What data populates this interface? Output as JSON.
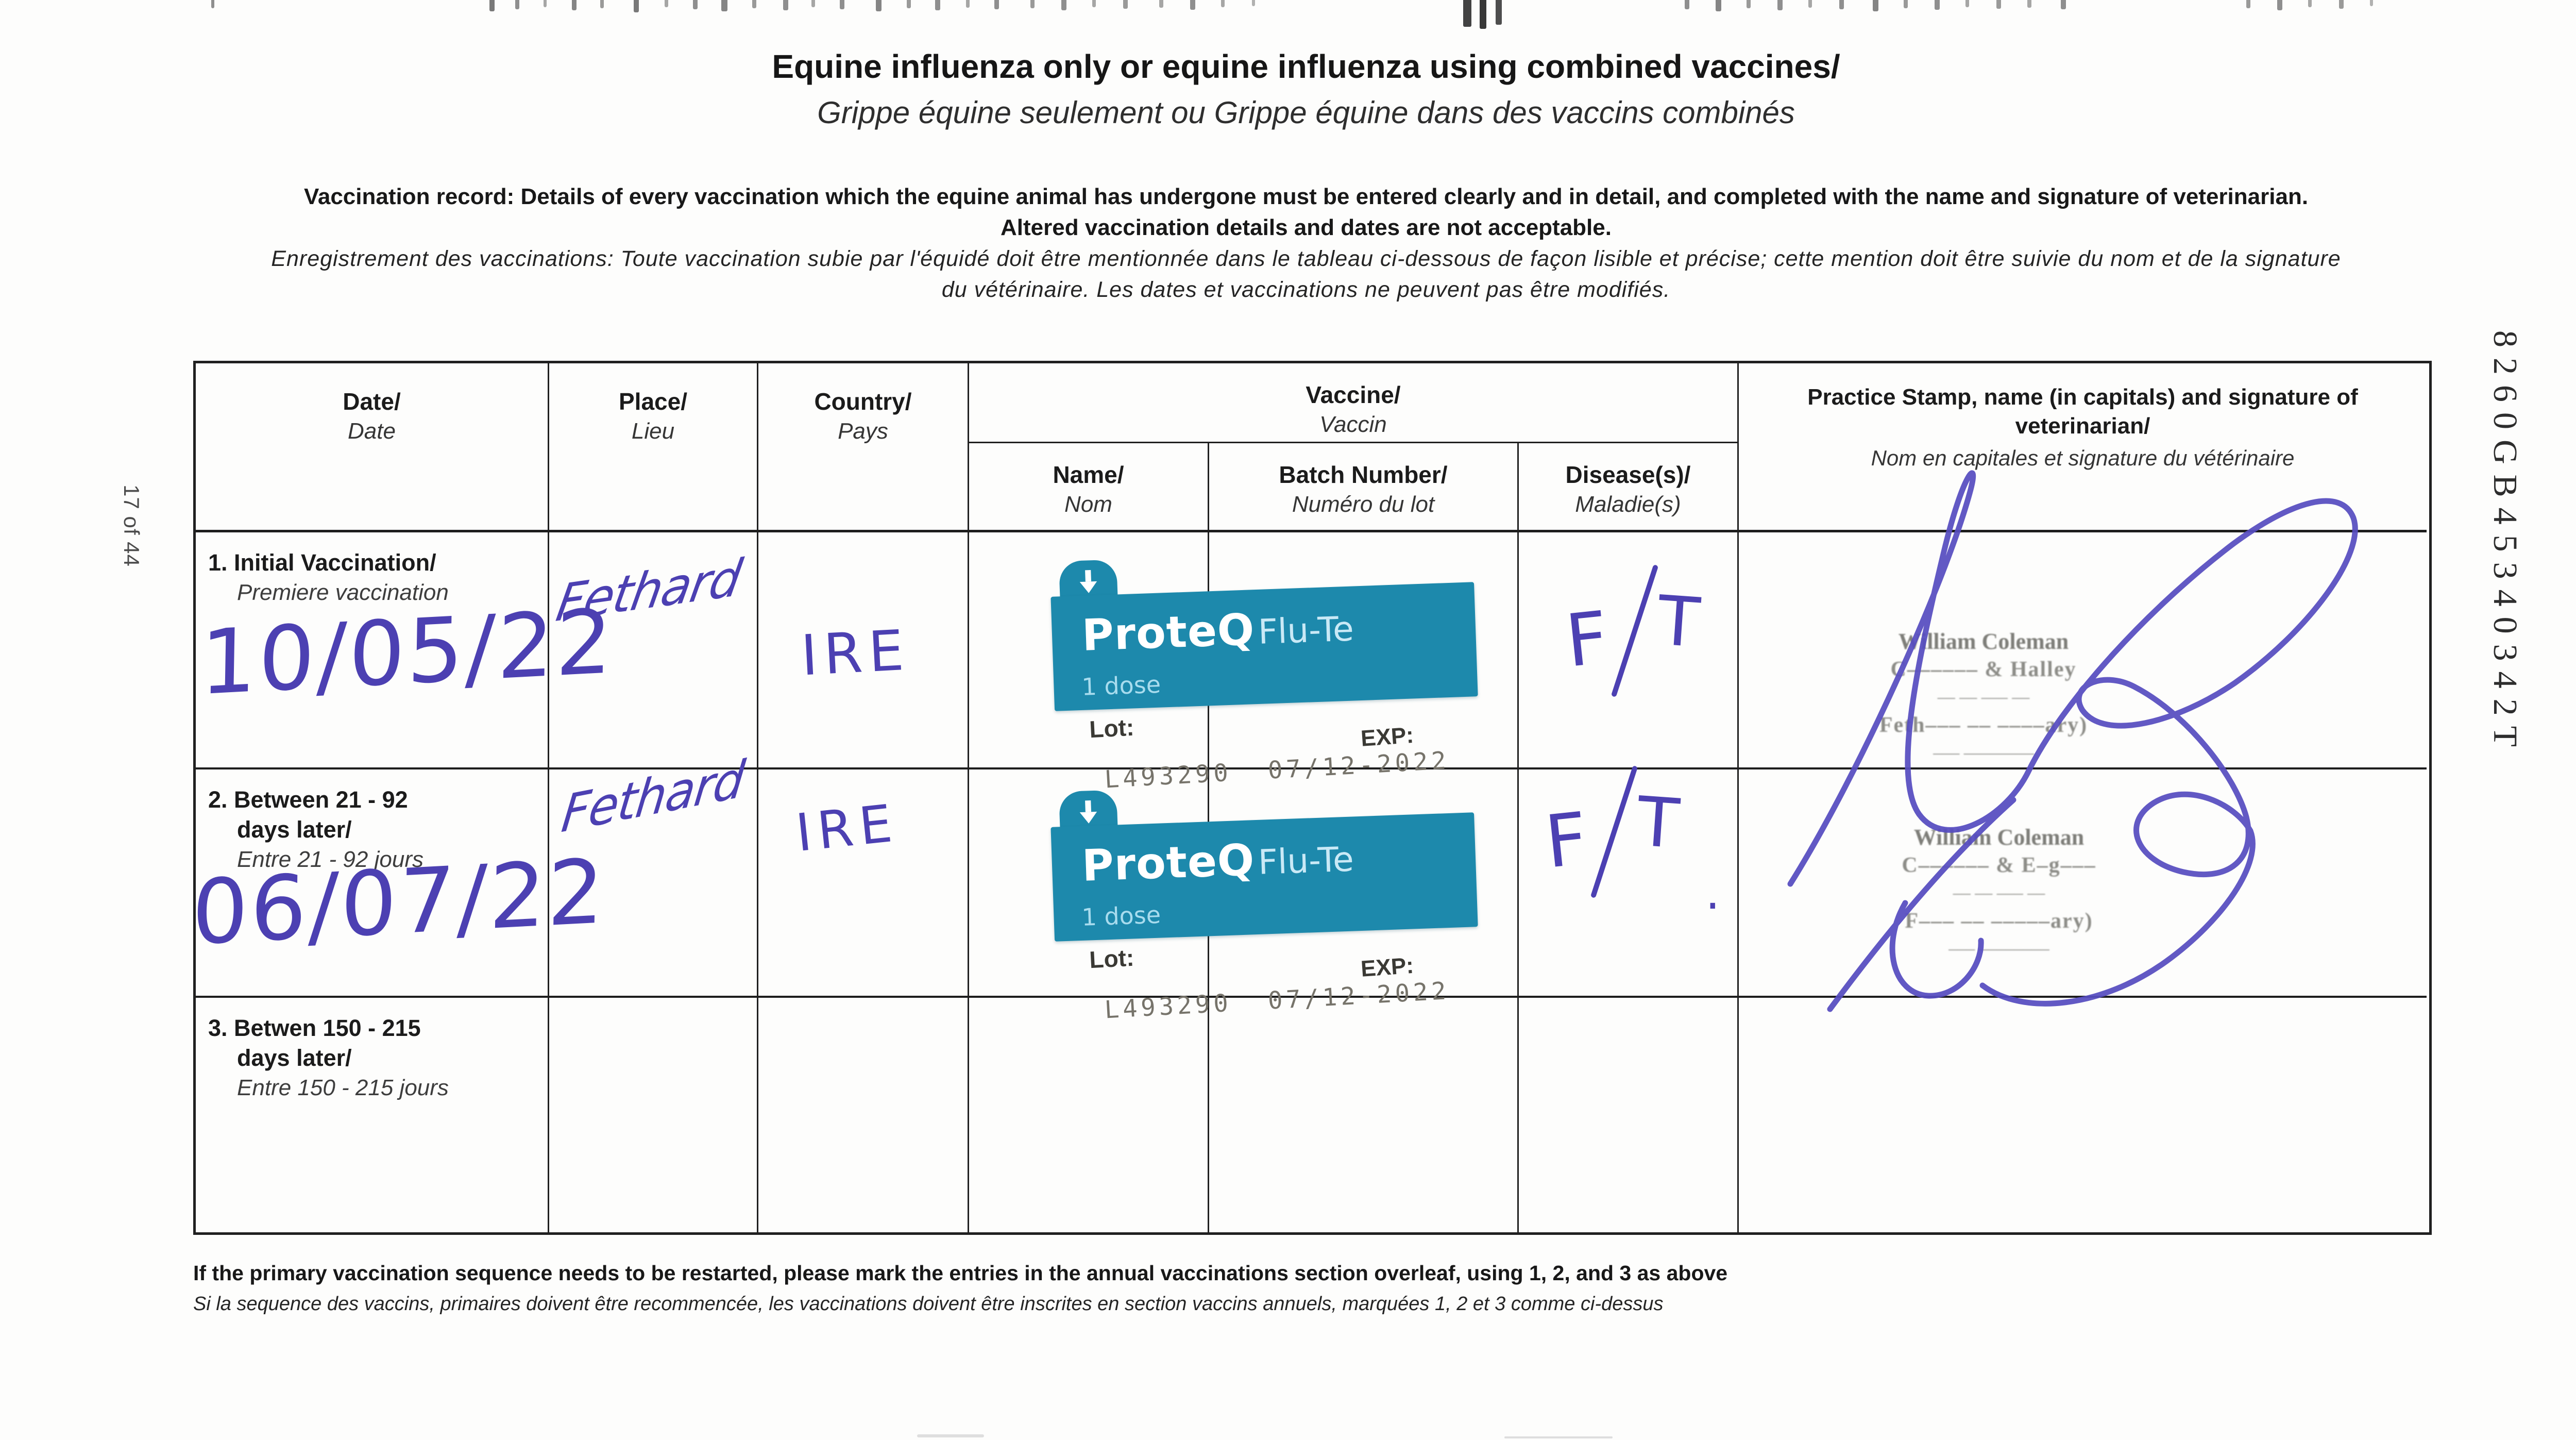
{
  "page": {
    "page_number_side": "17 of 44",
    "document_code_side": "8260GB45340342T"
  },
  "title": {
    "en": "Equine influenza only or equine influenza using combined vaccines/",
    "fr": "Grippe équine seulement ou Grippe équine dans des vaccins combinés"
  },
  "instructions": {
    "en_line1": "Vaccination record: Details of every vaccination which the equine animal has undergone must be entered clearly and in detail, and completed with the name and signature of veterinarian.",
    "en_line2": "Altered vaccination details and dates are not acceptable.",
    "fr_line1": "Enregistrement des vaccinations: Toute vaccination subie par l'équidé doit être mentionnée dans le tableau ci-dessous de façon lisible et précise; cette mention doit être suivie du nom et de la signature",
    "fr_line2": "du vétérinaire. Les dates et vaccinations ne peuvent pas être modifiés."
  },
  "table": {
    "headers": {
      "date_en": "Date/",
      "date_fr": "Date",
      "place_en": "Place/",
      "place_fr": "Lieu",
      "country_en": "Country/",
      "country_fr": "Pays",
      "vaccine_en": "Vaccine/",
      "vaccine_fr": "Vaccin",
      "name_en": "Name/",
      "name_fr": "Nom",
      "batch_en": "Batch Number/",
      "batch_fr": "Numéro du lot",
      "disease_en": "Disease(s)/",
      "disease_fr": "Maladie(s)",
      "stamp_en": "Practice Stamp, name (in capitals) and signature of veterinarian/",
      "stamp_fr": "Nom en capitales et signature du vétérinaire"
    },
    "rows": [
      {
        "label_bold_1": "1. Initial Vaccination/",
        "label_bold_2": "",
        "label_fr": "Premiere vaccination",
        "date": "10/05/22",
        "place": "Fethard",
        "country": "IRE",
        "vaccine": {
          "brand": "ProteQ",
          "variant": "Flu-Te",
          "dose": "1 dose",
          "lot_label": "Lot:",
          "exp_label": "EXP:",
          "lot_value": "L493290  07/12-2022"
        },
        "disease_parts": {
          "f": "F",
          "t": "T",
          "suffix": ""
        },
        "stamp_lines": {
          "0": "William Coleman",
          "1": "C––––––  & Halley",
          "2": "–– –– ––– ––",
          "3": "Feth––– –– ––––ary)",
          "4": "––– ––––––––"
        }
      },
      {
        "label_bold_1": "2. Between 21 - 92",
        "label_bold_2": "days later/",
        "label_fr": "Entre 21 - 92 jours",
        "date": "06/07/22",
        "place": "Fethard",
        "country": "IRE",
        "vaccine": {
          "brand": "ProteQ",
          "variant": "Flu-Te",
          "dose": "1 dose",
          "lot_label": "Lot:",
          "exp_label": "EXP:",
          "lot_value": "L493290  07/12-2022"
        },
        "disease_parts": {
          "f": "F",
          "t": "T",
          "suffix": "."
        },
        "stamp_lines": {
          "0": "William Coleman",
          "1": "C–––––– & E–g–––",
          "2": "–– –– ––– ––",
          "3": "F––– –– –––––ary)",
          "4": "––– ––––––––"
        }
      },
      {
        "label_bold_1": "3. Betwen 150 - 215",
        "label_bold_2": "days later/",
        "label_fr": "Entre 150 - 215 jours",
        "date": "",
        "place": "",
        "country": ""
      }
    ]
  },
  "footer": {
    "en": "If the primary vaccination sequence needs to be restarted, please mark the entries in the annual vaccinations section overleaf, using 1, 2, and 3 as above",
    "fr": "Si la sequence des vaccins, primaires doivent être recommencée, les vaccinations doivent être inscrites en section vaccins annuels, marquées 1, 2 et 3 comme ci-dessus"
  },
  "colors": {
    "sticker_teal": "#1d89ac",
    "ink_blue": "#4c40b2",
    "stamp_gray": "#8d8d88"
  }
}
